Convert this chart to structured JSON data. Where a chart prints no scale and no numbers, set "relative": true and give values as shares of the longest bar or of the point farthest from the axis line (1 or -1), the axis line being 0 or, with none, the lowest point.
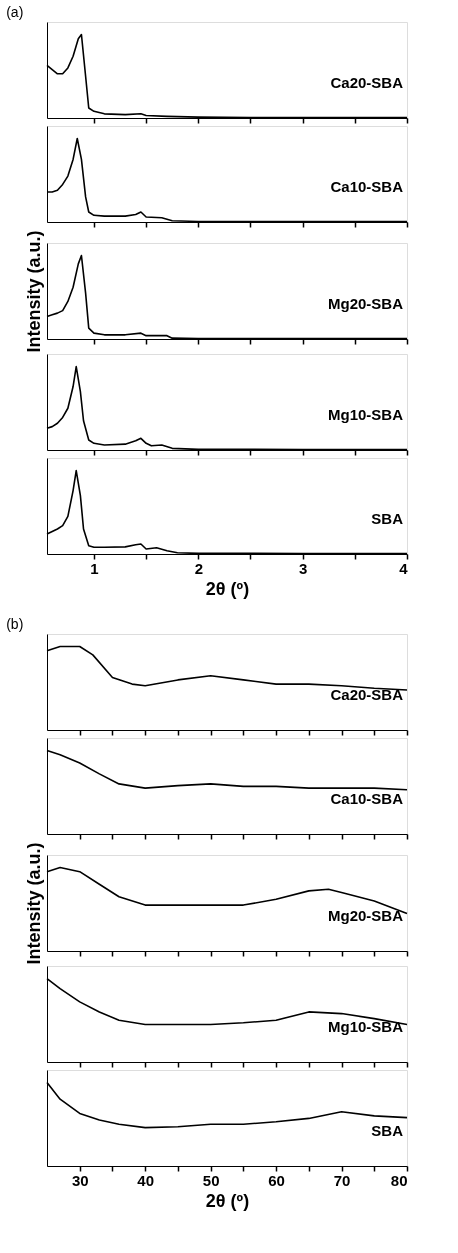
{
  "chart_data": [
    {
      "type": "line",
      "relative": true,
      "title": "(a)",
      "tick_labels": false,
      "marker": "none",
      "line_style": "solid",
      "xlim": [
        0.55,
        4
      ],
      "xticks": [
        1,
        {
          "value": 1.5,
          "label": null
        },
        2,
        {
          "value": 2.5,
          "label": null
        },
        3,
        {
          "value": 3.5,
          "label": null
        },
        4
      ],
      "x": [
        0.55,
        0.6,
        0.65,
        0.7,
        0.75,
        0.8,
        0.85,
        0.88,
        0.92,
        0.95,
        1.0,
        1.1,
        1.3,
        1.45,
        1.5,
        1.7,
        2,
        2.5,
        3,
        4
      ],
      "series": [
        {
          "name": "Ca20-SBA",
          "color": "#000000",
          "values": [
            0.63,
            0.58,
            0.53,
            0.53,
            0.6,
            0.74,
            0.95,
            1,
            0.5,
            0.12,
            0.08,
            0.05,
            0.04,
            0.05,
            0.03,
            0.02,
            0.01,
            0.005,
            0.005,
            0.005
          ]
        }
      ]
    },
    {
      "type": "line",
      "relative": true,
      "tick_labels": false,
      "marker": "none",
      "line_style": "solid",
      "xlim": [
        0.55,
        4
      ],
      "xticks": [
        1,
        {
          "value": 1.5,
          "label": null
        },
        2,
        {
          "value": 2.5,
          "label": null
        },
        3,
        {
          "value": 3.5,
          "label": null
        },
        4
      ],
      "x": [
        0.55,
        0.6,
        0.65,
        0.7,
        0.75,
        0.8,
        0.84,
        0.88,
        0.92,
        0.95,
        1.0,
        1.1,
        1.3,
        1.4,
        1.45,
        1.5,
        1.65,
        1.75,
        2,
        3,
        4
      ],
      "series": [
        {
          "name": "Ca10-SBA",
          "color": "#000000",
          "values": [
            0.36,
            0.36,
            0.38,
            0.45,
            0.55,
            0.75,
            1,
            0.75,
            0.3,
            0.12,
            0.08,
            0.07,
            0.07,
            0.09,
            0.12,
            0.06,
            0.05,
            0.015,
            0.006,
            0.006,
            0.006
          ]
        }
      ]
    },
    {
      "type": "line",
      "relative": true,
      "ylabel": "Intensity (a.u.)",
      "tick_labels": false,
      "marker": "none",
      "line_style": "solid",
      "xlim": [
        0.55,
        4
      ],
      "xticks": [
        1,
        {
          "value": 1.5,
          "label": null
        },
        2,
        {
          "value": 2.5,
          "label": null
        },
        3,
        {
          "value": 3.5,
          "label": null
        },
        4
      ],
      "x": [
        0.55,
        0.6,
        0.65,
        0.7,
        0.75,
        0.8,
        0.85,
        0.88,
        0.92,
        0.95,
        1.0,
        1.1,
        1.3,
        1.45,
        1.5,
        1.7,
        1.75,
        2,
        3,
        4
      ],
      "series": [
        {
          "name": "Mg20-SBA",
          "color": "#000000",
          "values": [
            0.27,
            0.29,
            0.31,
            0.34,
            0.45,
            0.62,
            0.9,
            1,
            0.55,
            0.13,
            0.07,
            0.05,
            0.05,
            0.07,
            0.04,
            0.04,
            0.01,
            0.006,
            0.006,
            0.006
          ]
        }
      ]
    },
    {
      "type": "line",
      "relative": true,
      "tick_labels": false,
      "marker": "none",
      "line_style": "solid",
      "xlim": [
        0.55,
        4
      ],
      "xticks": [
        1,
        {
          "value": 1.5,
          "label": null
        },
        2,
        {
          "value": 2.5,
          "label": null
        },
        3,
        {
          "value": 3.5,
          "label": null
        },
        4
      ],
      "x": [
        0.55,
        0.6,
        0.65,
        0.7,
        0.75,
        0.8,
        0.83,
        0.87,
        0.9,
        0.95,
        1.0,
        1.1,
        1.3,
        1.4,
        1.45,
        1.5,
        1.55,
        1.65,
        1.75,
        2,
        3,
        4
      ],
      "series": [
        {
          "name": "Mg10-SBA",
          "color": "#000000",
          "values": [
            0.26,
            0.28,
            0.32,
            0.39,
            0.5,
            0.76,
            1,
            0.7,
            0.35,
            0.12,
            0.08,
            0.06,
            0.07,
            0.11,
            0.14,
            0.08,
            0.05,
            0.06,
            0.02,
            0.008,
            0.006,
            0.005
          ]
        }
      ]
    },
    {
      "type": "line",
      "relative": true,
      "xlabel": "2θ (º)",
      "tick_labels": "x",
      "marker": "none",
      "line_style": "solid",
      "xlim": [
        0.55,
        4
      ],
      "xticks": [
        1,
        {
          "value": 1.5,
          "label": null
        },
        2,
        {
          "value": 2.5,
          "label": null
        },
        3,
        {
          "value": 3.5,
          "label": null
        },
        4
      ],
      "x": [
        0.55,
        0.6,
        0.65,
        0.7,
        0.75,
        0.8,
        0.83,
        0.87,
        0.9,
        0.95,
        1.0,
        1.1,
        1.3,
        1.4,
        1.45,
        1.5,
        1.6,
        1.7,
        1.8,
        2,
        3,
        4
      ],
      "series": [
        {
          "name": "SBA",
          "color": "#000000",
          "values": [
            0.24,
            0.27,
            0.3,
            0.34,
            0.45,
            0.76,
            1,
            0.7,
            0.3,
            0.1,
            0.08,
            0.08,
            0.085,
            0.11,
            0.12,
            0.06,
            0.075,
            0.04,
            0.015,
            0.008,
            0.006,
            0.005
          ]
        }
      ]
    },
    {
      "type": "line",
      "relative": true,
      "title": "(b)",
      "tick_labels": false,
      "marker": "none",
      "line_style": "solid",
      "xlim": [
        25,
        80
      ],
      "xticks": [
        30,
        {
          "value": 35,
          "label": null
        },
        40,
        {
          "value": 45,
          "label": null
        },
        50,
        {
          "value": 55,
          "label": null
        },
        60,
        {
          "value": 65,
          "label": null
        },
        70,
        {
          "value": 75,
          "label": null
        },
        80
      ],
      "x": [
        25,
        27,
        30,
        32,
        35,
        38,
        40,
        45,
        50,
        55,
        60,
        65,
        70,
        75,
        80
      ],
      "series": [
        {
          "name": "Ca20-SBA",
          "color": "#000000",
          "values": [
            0.95,
            1,
            1,
            0.9,
            0.63,
            0.55,
            0.53,
            0.6,
            0.65,
            0.6,
            0.55,
            0.55,
            0.53,
            0.5,
            0.48
          ]
        }
      ]
    },
    {
      "type": "line",
      "relative": true,
      "tick_labels": false,
      "marker": "none",
      "line_style": "solid",
      "xlim": [
        25,
        80
      ],
      "xticks": [
        30,
        {
          "value": 35,
          "label": null
        },
        40,
        {
          "value": 45,
          "label": null
        },
        50,
        {
          "value": 55,
          "label": null
        },
        60,
        {
          "value": 65,
          "label": null
        },
        70,
        {
          "value": 75,
          "label": null
        },
        80
      ],
      "x": [
        25,
        27,
        30,
        33,
        36,
        40,
        45,
        50,
        55,
        60,
        65,
        70,
        75,
        80
      ],
      "series": [
        {
          "name": "Ca10-SBA",
          "color": "#000000",
          "values": [
            1,
            0.95,
            0.85,
            0.72,
            0.6,
            0.55,
            0.58,
            0.6,
            0.57,
            0.57,
            0.55,
            0.55,
            0.55,
            0.53
          ]
        }
      ]
    },
    {
      "type": "line",
      "relative": true,
      "ylabel": "Intensity (a.u.)",
      "tick_labels": false,
      "marker": "none",
      "line_style": "solid",
      "xlim": [
        25,
        80
      ],
      "xticks": [
        30,
        {
          "value": 35,
          "label": null
        },
        40,
        {
          "value": 45,
          "label": null
        },
        50,
        {
          "value": 55,
          "label": null
        },
        60,
        {
          "value": 65,
          "label": null
        },
        70,
        {
          "value": 75,
          "label": null
        },
        80
      ],
      "x": [
        25,
        27,
        30,
        33,
        36,
        40,
        45,
        50,
        55,
        60,
        65,
        68,
        70,
        75,
        80
      ],
      "series": [
        {
          "name": "Mg20-SBA",
          "color": "#000000",
          "values": [
            0.95,
            1,
            0.95,
            0.8,
            0.65,
            0.55,
            0.55,
            0.55,
            0.55,
            0.62,
            0.72,
            0.74,
            0.7,
            0.6,
            0.45
          ]
        }
      ]
    },
    {
      "type": "line",
      "relative": true,
      "tick_labels": false,
      "marker": "none",
      "line_style": "solid",
      "xlim": [
        25,
        80
      ],
      "xticks": [
        30,
        {
          "value": 35,
          "label": null
        },
        40,
        {
          "value": 45,
          "label": null
        },
        50,
        {
          "value": 55,
          "label": null
        },
        60,
        {
          "value": 65,
          "label": null
        },
        70,
        {
          "value": 75,
          "label": null
        },
        80
      ],
      "x": [
        25,
        27,
        30,
        33,
        36,
        40,
        45,
        50,
        55,
        60,
        65,
        70,
        75,
        80
      ],
      "series": [
        {
          "name": "Mg10-SBA",
          "color": "#000000",
          "values": [
            1,
            0.88,
            0.72,
            0.6,
            0.5,
            0.45,
            0.45,
            0.45,
            0.47,
            0.5,
            0.6,
            0.58,
            0.52,
            0.45
          ]
        }
      ]
    },
    {
      "type": "line",
      "relative": true,
      "xlabel": "2θ (º)",
      "tick_labels": "x",
      "marker": "none",
      "line_style": "solid",
      "xlim": [
        25,
        80
      ],
      "xticks": [
        30,
        {
          "value": 35,
          "label": null
        },
        40,
        {
          "value": 45,
          "label": null
        },
        50,
        {
          "value": 55,
          "label": null
        },
        60,
        {
          "value": 65,
          "label": null
        },
        70,
        {
          "value": 75,
          "label": null
        },
        80
      ],
      "x": [
        25,
        27,
        30,
        33,
        36,
        40,
        45,
        50,
        55,
        60,
        65,
        70,
        75,
        80
      ],
      "series": [
        {
          "name": "SBA",
          "color": "#000000",
          "values": [
            1,
            0.8,
            0.63,
            0.55,
            0.5,
            0.46,
            0.47,
            0.5,
            0.5,
            0.53,
            0.57,
            0.65,
            0.6,
            0.58
          ]
        }
      ]
    }
  ]
}
